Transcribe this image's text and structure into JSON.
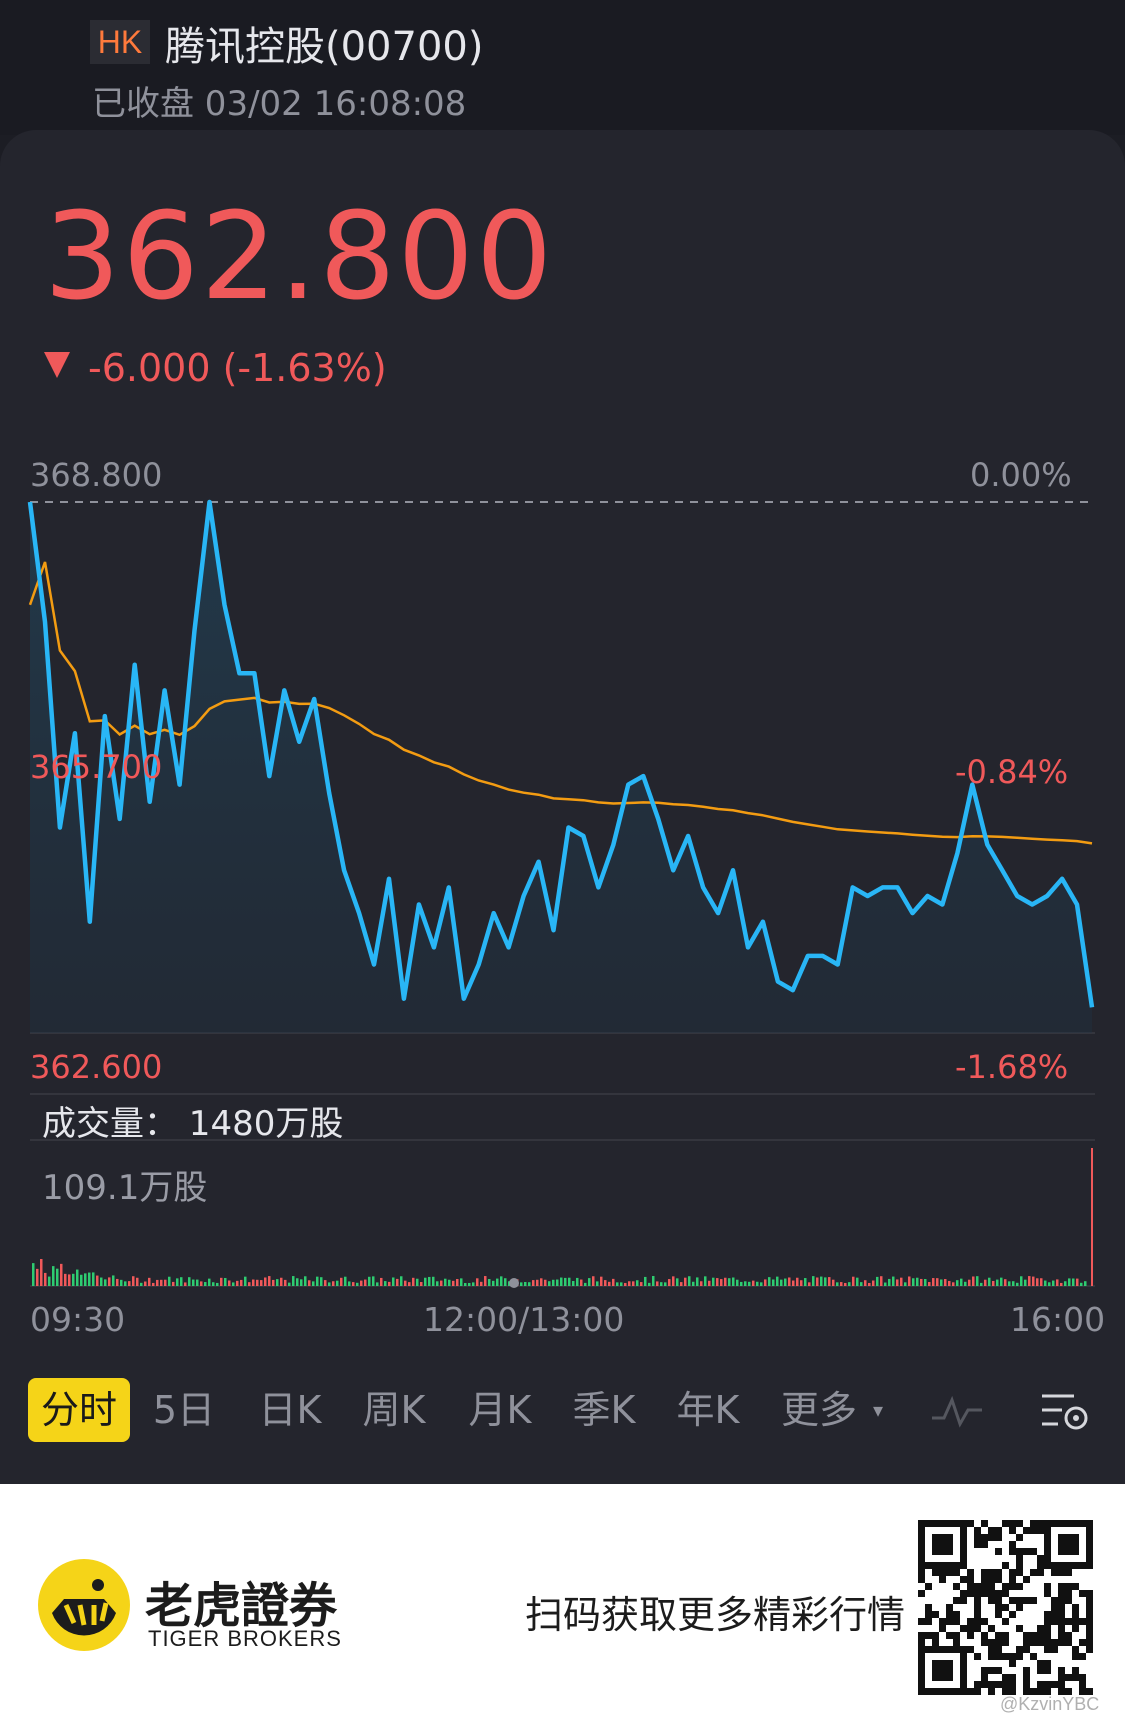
{
  "stock": {
    "market": "HK",
    "name": "腾讯控股(00700)",
    "status": "已收盘 03/02 16:08:08",
    "price": "362.800",
    "change": "-6.000 (-1.63%)"
  },
  "axis": {
    "price_top": "368.800",
    "pct_top": "0.00%",
    "price_mid": "365.700",
    "pct_mid": "-0.84%",
    "price_bottom": "362.600",
    "pct_bottom": "-1.68%"
  },
  "volume": {
    "label": "成交量： 1480万股",
    "max": "109.1万股"
  },
  "time_labels": {
    "open": "09:30",
    "mid": "12:00/13:00",
    "close": "16:00"
  },
  "tabs": [
    "分时",
    "5日",
    "日K",
    "周K",
    "月K",
    "季K",
    "年K",
    "更多"
  ],
  "active_tab": "分时",
  "footer": {
    "brand_cn": "老虎證券",
    "brand_en": "TIGER BROKERS",
    "slogan": "扫码获取更多精彩行情",
    "watermark": "@KzvinYBC"
  },
  "colors": {
    "price_line": "#29b6f6",
    "avg_line": "#f39c12",
    "down": "#f0595a",
    "accent": "#f5d418"
  },
  "chart_data": {
    "type": "line",
    "y_range": [
      362.6,
      368.8
    ],
    "x_range": [
      "09:30",
      "16:00"
    ],
    "series": [
      {
        "values": [
          368.8,
          367.4,
          365.0,
          366.1,
          363.9,
          366.3,
          365.1,
          366.9,
          365.3,
          366.6,
          365.5,
          367.3,
          368.8,
          367.6,
          366.8,
          366.8,
          365.6,
          366.6,
          366.0,
          366.5,
          365.4,
          364.5,
          364.0,
          363.4,
          364.4,
          363.0,
          364.1,
          363.6,
          364.3,
          363.0,
          363.4,
          364.0,
          363.6,
          364.2,
          364.6,
          363.8,
          365.0,
          364.9,
          364.3,
          364.8,
          365.5,
          365.6,
          365.1,
          364.5,
          364.9,
          364.3,
          364.0,
          364.5,
          363.6,
          363.9,
          363.2,
          363.1,
          363.5,
          363.5,
          363.4,
          364.3,
          364.2,
          364.3,
          364.3,
          364.0,
          364.2,
          364.1,
          364.7,
          365.5,
          364.8,
          364.5,
          364.2,
          364.1,
          364.2,
          364.4,
          364.1,
          362.9
        ]
      }
    ],
    "volume_unit": "万股",
    "volume_max": 109.1,
    "total_volume": "1480万股"
  }
}
